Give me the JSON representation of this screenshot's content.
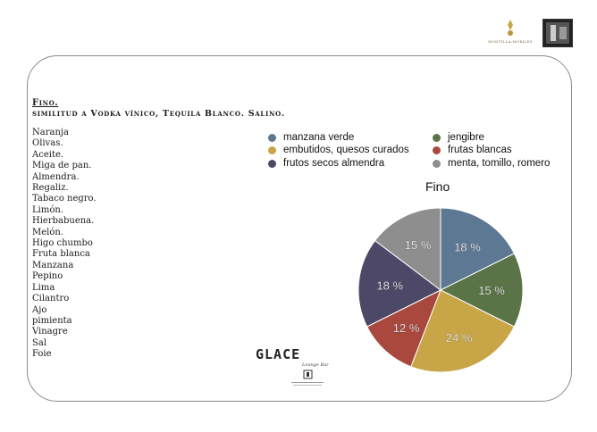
{
  "header": {
    "brand_name": "MONTILLA-MORILES"
  },
  "section": {
    "title": "Fino.",
    "subtitle": "similitud a Vodka vínico, Tequila Blanco. Salino."
  },
  "notes": [
    "Naranja",
    "Olivas.",
    "Aceite.",
    "Miga de pan.",
    "Almendra.",
    "Regaliz.",
    "Tabaco negro.",
    "Limón.",
    "Hierbabuena.",
    "Melón.",
    "Higo chumbo",
    "Fruta blanca",
    "Manzana",
    "Pepino",
    "Lima",
    "Cilantro",
    "Ajo",
    "pimienta",
    "Vinagre",
    "Sal",
    "Foie"
  ],
  "chart_data": {
    "type": "pie",
    "title": "Fino",
    "legend_position": "top",
    "slices": [
      {
        "label": "manzana verde",
        "value": 18,
        "color": "#5d7893"
      },
      {
        "label": "jengibre",
        "value": 15,
        "color": "#5a7448"
      },
      {
        "label": "embutidos, quesos curados",
        "value": 24,
        "color": "#c8a546"
      },
      {
        "label": "frutas blancas",
        "value": 12,
        "color": "#a9493e"
      },
      {
        "label": "frutos secos almendra",
        "value": 18,
        "color": "#4e4868"
      },
      {
        "label": "menta, tomillo, romero",
        "value": 15,
        "color": "#8e8e8e"
      }
    ],
    "value_suffix": " %"
  },
  "footer": {
    "logo_text": "GLACE",
    "logo_tagline": "Lounge Bar"
  }
}
